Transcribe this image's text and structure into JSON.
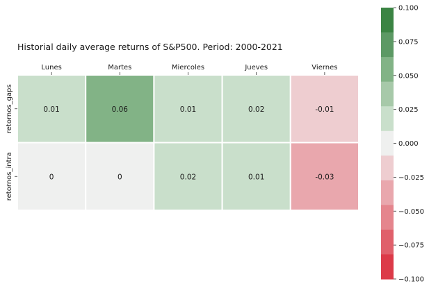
{
  "chart_data": {
    "type": "heatmap",
    "title": "Historial daily average returns of S&P500. Period: 2000-2021",
    "columns": [
      "Lunes",
      "Martes",
      "Miercoles",
      "Jueves",
      "Viernes"
    ],
    "rows": [
      "retornos_gaps",
      "retornos_intra"
    ],
    "values": [
      [
        0.01,
        0.06,
        0.01,
        0.02,
        -0.01
      ],
      [
        0,
        0,
        0.02,
        0.01,
        -0.03
      ]
    ],
    "cell_labels": [
      [
        "0.01",
        "0.06",
        "0.01",
        "0.02",
        "-0.01"
      ],
      [
        "0",
        "0",
        "0.02",
        "0.01",
        "-0.03"
      ]
    ],
    "colorbar": {
      "vmin": -0.1,
      "vmax": 0.1,
      "ticks": [
        0.1,
        0.075,
        0.05,
        0.025,
        0.0,
        -0.025,
        -0.05,
        -0.075,
        -0.1
      ],
      "tick_labels": [
        "0.100",
        "0.075",
        "0.050",
        "0.025",
        "0.000",
        "−0.025",
        "−0.050",
        "−0.075",
        "−0.100"
      ],
      "bins": [
        "#3b8443",
        "#5c9964",
        "#82b386",
        "#a7c9a9",
        "#c9dfcb",
        "#eff0ef",
        "#eecdd0",
        "#e9a7ad",
        "#e5858d",
        "#e0606b",
        "#dc3a48"
      ]
    },
    "x_ticks_position": "top",
    "grid": false
  }
}
